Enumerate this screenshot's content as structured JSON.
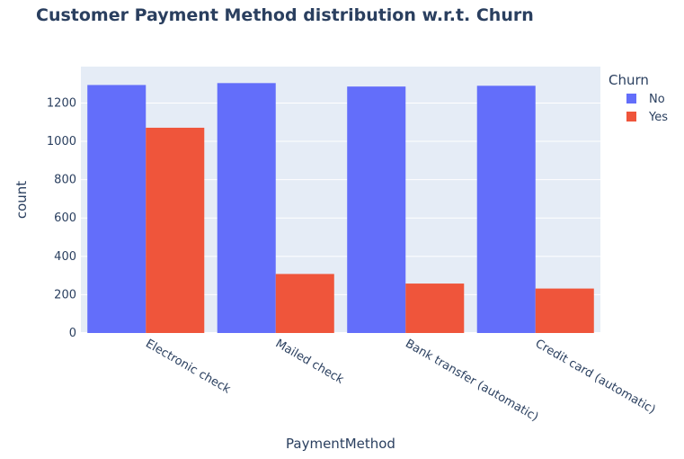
{
  "chart_data": {
    "type": "bar",
    "barmode": "group",
    "title": "Customer Payment Method distribution w.r.t. Churn",
    "xlabel": "PaymentMethod",
    "ylabel": "count",
    "categories": [
      "Electronic check",
      "Mailed check",
      "Bank transfer (automatic)",
      "Credit card (automatic)"
    ],
    "series": [
      {
        "name": "No",
        "color": "#636efa",
        "values": [
          1294,
          1304,
          1286,
          1290
        ]
      },
      {
        "name": "Yes",
        "color": "#ef553b",
        "values": [
          1071,
          308,
          258,
          232
        ]
      }
    ],
    "ylim": [
      0,
      1390
    ],
    "yticks": [
      0,
      200,
      400,
      600,
      800,
      1000,
      1200
    ],
    "grid": true,
    "legend": {
      "title": "Churn",
      "position": "top-right"
    },
    "plot_bg": "#e5ecf6"
  }
}
